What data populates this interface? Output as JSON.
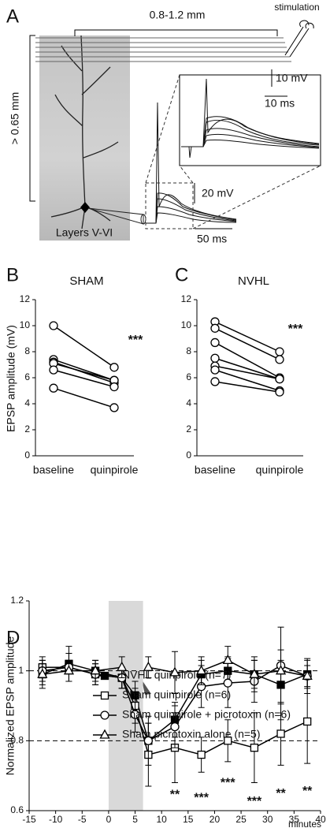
{
  "panel_a": {
    "label": "A",
    "distance": "0.8-1.2 mm",
    "stimulation": "stimulation",
    "depth": "> 0.65 mm",
    "layers": "Layers V-VI",
    "inset_scale_v": "10 mV",
    "inset_scale_t": "10 ms",
    "scale_v": "20 mV",
    "scale_t": "50 ms"
  },
  "chart_data": [
    {
      "type": "line",
      "panel": "B",
      "title": "SHAM",
      "ylabel": "EPSP amplitude (mV)",
      "categories": [
        "baseline",
        "quinpirole"
      ],
      "ylim": [
        0,
        12
      ],
      "yticks": [
        0,
        2,
        4,
        6,
        8,
        10,
        12
      ],
      "annotation": "***",
      "marker": "open-circle",
      "color": "#000000",
      "series": [
        {
          "values": [
            10.0,
            6.8
          ]
        },
        {
          "values": [
            7.4,
            5.8
          ]
        },
        {
          "values": [
            7.2,
            5.6
          ]
        },
        {
          "values": [
            7.1,
            5.8
          ]
        },
        {
          "values": [
            6.6,
            5.3
          ]
        },
        {
          "values": [
            5.2,
            3.7
          ]
        }
      ]
    },
    {
      "type": "line",
      "panel": "C",
      "title": "NVHL",
      "categories": [
        "baseline",
        "quinpirole"
      ],
      "ylim": [
        0,
        12
      ],
      "yticks": [
        0,
        2,
        4,
        6,
        8,
        10,
        12
      ],
      "annotation": "***",
      "marker": "open-circle",
      "color": "#000000",
      "series": [
        {
          "values": [
            10.3,
            8.0
          ]
        },
        {
          "values": [
            9.8,
            7.4
          ]
        },
        {
          "values": [
            8.7,
            6.0
          ]
        },
        {
          "values": [
            7.5,
            5.9
          ]
        },
        {
          "values": [
            6.9,
            5.9
          ]
        },
        {
          "values": [
            6.6,
            5.0
          ]
        },
        {
          "values": [
            5.7,
            4.9
          ]
        }
      ]
    },
    {
      "type": "line",
      "panel": "D",
      "xlabel": "minutes",
      "ylabel": "Normalized EPSP amplitude",
      "x": [
        -12.5,
        -7.5,
        -2.5,
        2.5,
        5,
        7.5,
        12.5,
        17.5,
        22.5,
        27.5,
        32.5,
        37.5
      ],
      "xlim": [
        -15,
        40
      ],
      "xticks": [
        -15,
        -10,
        -5,
        0,
        5,
        10,
        15,
        20,
        25,
        30,
        35,
        40
      ],
      "ylim": [
        0.6,
        1.2
      ],
      "yticks": [
        0.6,
        0.8,
        1,
        1.2
      ],
      "shaded_range": [
        0,
        6.5
      ],
      "reference_lines": [
        1,
        0.8
      ],
      "annotations": [
        "**",
        "***",
        "***",
        "***",
        "**",
        "**"
      ],
      "series": [
        {
          "name": "NVHL quinpirole (n=7)",
          "color": "#000000",
          "marker": "filled-square",
          "values": [
            0.99,
            1.02,
            1.0,
            0.98,
            0.93,
            0.8,
            0.86,
            0.99,
            1.0,
            0.99,
            0.96,
            0.99
          ],
          "errors": [
            0.04,
            0.05,
            0.03,
            0.03,
            0.04,
            0.07,
            0.05,
            0.04,
            0.04,
            0.05,
            0.1,
            0.04
          ]
        },
        {
          "name": "Sham quinpirole (n=6)",
          "color": "#000000",
          "marker": "open-square",
          "values": [
            1.01,
            1.01,
            0.99,
            0.98,
            0.9,
            0.76,
            0.78,
            0.76,
            0.8,
            0.78,
            0.82,
            0.855
          ],
          "errors": [
            0.03,
            0.04,
            0.03,
            0.03,
            0.05,
            0.09,
            0.1,
            0.05,
            0.06,
            0.1,
            0.09,
            0.12
          ]
        },
        {
          "name": "Sham quinpirole + picrotoxin (n=6)",
          "color": "#000000",
          "marker": "open-circle",
          "values": [
            1.0,
            1.01,
            0.99,
            0.98,
            0.875,
            0.8,
            0.84,
            0.955,
            0.965,
            0.97,
            1.015,
            0.985
          ],
          "errors": [
            0.03,
            0.04,
            0.03,
            0.03,
            0.05,
            0.05,
            0.06,
            0.06,
            0.07,
            0.06,
            0.11,
            0.05
          ]
        },
        {
          "name": "Sham picrotoxin alone (n=5)",
          "color": "#000000",
          "marker": "open-triangle",
          "values": [
            0.99,
            1.0,
            1.0,
            1.01,
            null,
            1.01,
            0.995,
            1.0,
            1.03,
            0.99,
            1.0,
            0.985
          ],
          "errors": [
            0.03,
            0.03,
            0.03,
            0.03,
            null,
            0.03,
            0.06,
            0.04,
            0.04,
            0.04,
            0.03,
            0.03
          ]
        }
      ]
    }
  ]
}
